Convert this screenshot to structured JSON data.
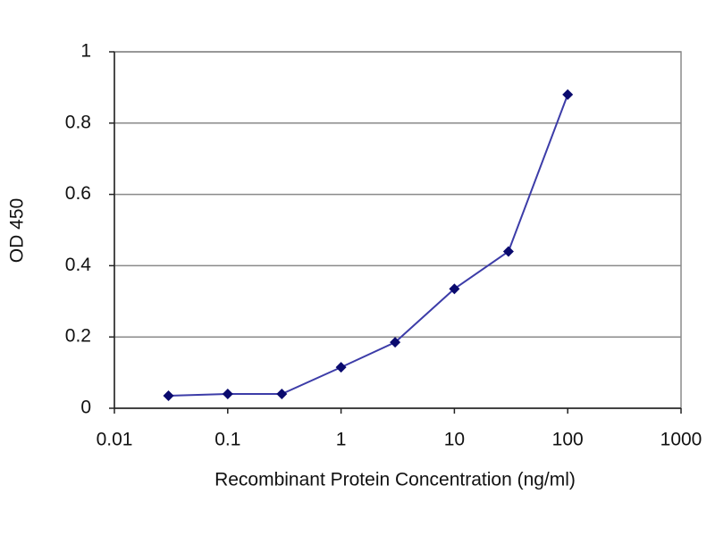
{
  "chart_data": {
    "type": "line",
    "x_label": "Recombinant Protein Concentration (ng/ml)",
    "y_label": "OD 450",
    "x": [
      0.03,
      0.1,
      0.3,
      1,
      3,
      10,
      30,
      100
    ],
    "values": [
      0.035,
      0.04,
      0.04,
      0.115,
      0.185,
      0.335,
      0.44,
      0.88
    ],
    "color": "#3c3ca8",
    "marker_color": "#0a0a6e",
    "xscale": "log",
    "xlim": [
      0.01,
      1000
    ],
    "xticks": [
      0.01,
      0.1,
      1,
      10,
      100,
      1000
    ],
    "ylim": [
      0,
      1
    ],
    "yticks": [
      0,
      0.2,
      0.4,
      0.6,
      0.8,
      1
    ],
    "grid": true
  }
}
